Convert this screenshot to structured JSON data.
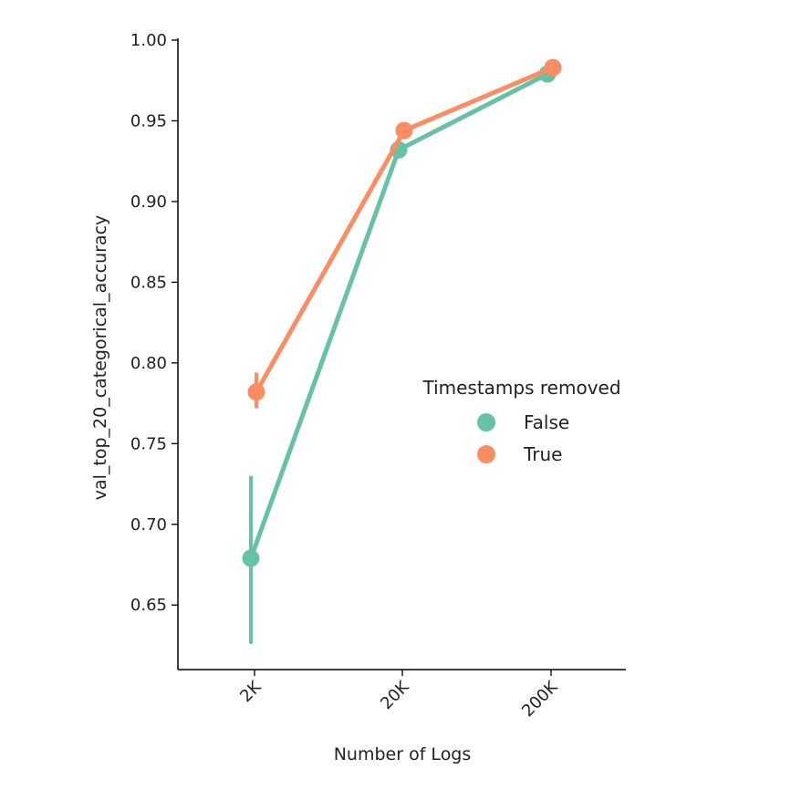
{
  "chart_data": {
    "type": "line",
    "title": "",
    "xlabel": "Number of Logs",
    "ylabel": "val_top_20_categorical_accuracy",
    "categories": [
      "2K",
      "20K",
      "200K"
    ],
    "ylim": [
      0.61,
      1.0
    ],
    "yticks": [
      "0.65",
      "0.70",
      "0.75",
      "0.80",
      "0.85",
      "0.90",
      "0.95",
      "1.00"
    ],
    "grid": false,
    "legend": {
      "title": "Timestamps removed",
      "placement": "center-right"
    },
    "series": [
      {
        "name": "False",
        "color": "#66c2a5",
        "values": [
          0.679,
          0.932,
          0.979
        ],
        "error_low": [
          0.626,
          0.929,
          0.977
        ],
        "error_high": [
          0.73,
          0.935,
          0.981
        ]
      },
      {
        "name": "True",
        "color": "#fc8d62",
        "values": [
          0.782,
          0.944,
          0.983
        ],
        "error_low": [
          0.772,
          0.941,
          0.981
        ],
        "error_high": [
          0.794,
          0.947,
          0.985
        ]
      }
    ]
  }
}
